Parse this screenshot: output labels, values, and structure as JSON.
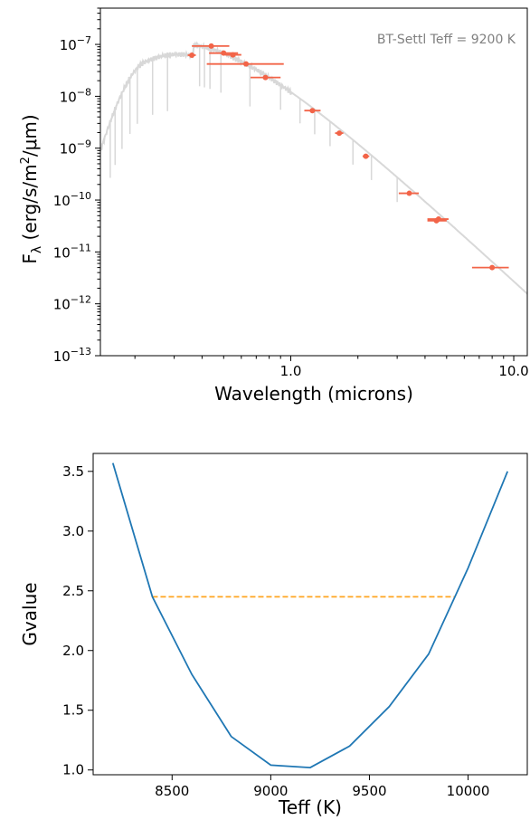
{
  "chart_data": [
    {
      "type": "scatter",
      "id": "sed",
      "xscale": "log",
      "yscale": "log",
      "xlim": [
        0.14,
        11.5
      ],
      "ylim": [
        1e-13,
        5e-07
      ],
      "xlabel": "Wavelength (microns)",
      "ylabel_prefix": "F",
      "ylabel_sub": "λ",
      "ylabel_units_a": " (erg/s/m",
      "ylabel_units_sup": "2",
      "ylabel_units_b": "/μm)",
      "annotation": "BT-Settl Teff = 9200 K",
      "x_ticks": [
        {
          "value": 1.0,
          "label": "1.0"
        },
        {
          "value": 10.0,
          "label": "10.0"
        }
      ],
      "y_ticks": [
        {
          "value": 1e-07,
          "base": "10",
          "exp": "−7"
        },
        {
          "value": 1e-08,
          "base": "10",
          "exp": "−8"
        },
        {
          "value": 1e-09,
          "base": "10",
          "exp": "−9"
        },
        {
          "value": 1e-10,
          "base": "10",
          "exp": "−10"
        },
        {
          "value": 1e-11,
          "base": "10",
          "exp": "−11"
        },
        {
          "value": 1e-12,
          "base": "10",
          "exp": "−12"
        },
        {
          "value": 1e-13,
          "base": "10",
          "exp": "−13"
        }
      ],
      "model_color": "#d8d8d8",
      "point_color": "#f26448",
      "points": [
        {
          "x": 0.36,
          "y": 6.2e-08,
          "xerr": [
            0.345,
            0.375
          ]
        },
        {
          "x": 0.44,
          "y": 9.3e-08,
          "xerr": [
            0.36,
            0.53
          ]
        },
        {
          "x": 0.5,
          "y": 6.8e-08,
          "xerr": [
            0.43,
            0.58
          ]
        },
        {
          "x": 0.55,
          "y": 6.3e-08,
          "xerr": [
            0.51,
            0.6
          ]
        },
        {
          "x": 0.63,
          "y": 4.2e-08,
          "xerr": [
            0.42,
            0.93
          ]
        },
        {
          "x": 0.77,
          "y": 2.3e-08,
          "xerr": [
            0.66,
            0.9
          ]
        },
        {
          "x": 1.25,
          "y": 5.3e-09,
          "xerr": [
            1.15,
            1.36
          ]
        },
        {
          "x": 1.65,
          "y": 1.95e-09,
          "xerr": [
            1.58,
            1.72
          ]
        },
        {
          "x": 2.17,
          "y": 7e-10,
          "xerr": [
            2.1,
            2.25
          ]
        },
        {
          "x": 3.4,
          "y": 1.35e-10,
          "xerr": [
            3.05,
            3.75
          ]
        },
        {
          "x": 4.6,
          "y": 4.3e-11,
          "xerr": [
            4.1,
            5.1
          ]
        },
        {
          "x": 4.5,
          "y": 4e-11,
          "xerr": [
            4.1,
            5.0
          ]
        },
        {
          "x": 8.0,
          "y": 5e-12,
          "xerr": [
            6.5,
            9.5
          ]
        }
      ]
    },
    {
      "type": "line",
      "id": "gvalue",
      "xlim": [
        8100,
        10300
      ],
      "ylim": [
        0.96,
        3.65
      ],
      "xlabel": "Teff (K)",
      "ylabel": "Gvalue",
      "x_ticks": [
        8500,
        9000,
        9500,
        10000
      ],
      "y_ticks": [
        1.0,
        1.5,
        2.0,
        2.5,
        3.0,
        3.5
      ],
      "series": [
        {
          "color": "#1f77b4",
          "x": [
            8200,
            8400,
            8600,
            8800,
            9000,
            9200,
            9400,
            9600,
            9800,
            10000,
            10200
          ],
          "y": [
            3.57,
            2.45,
            1.8,
            1.28,
            1.04,
            1.02,
            1.2,
            1.53,
            1.97,
            2.69,
            3.5
          ]
        }
      ],
      "hline": {
        "y": 2.45,
        "x_start": 8400,
        "x_end": 9930,
        "color": "#ffa520",
        "style": "dashed"
      }
    }
  ]
}
